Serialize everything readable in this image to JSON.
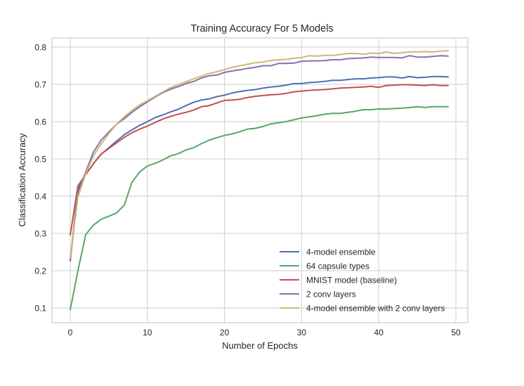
{
  "chart_data": {
    "type": "line",
    "title": "Training Accuracy For 5 Models",
    "xlabel": "Number of Epochs",
    "ylabel": "Classification Accuracy",
    "xlim": [
      -2.4,
      51.5
    ],
    "ylim": [
      0.06,
      0.825
    ],
    "xticks": [
      0,
      10,
      20,
      30,
      40,
      50
    ],
    "yticks": [
      0.1,
      0.2,
      0.3,
      0.4,
      0.5,
      0.6,
      0.7,
      0.8
    ],
    "xtick_labels": [
      "0",
      "10",
      "20",
      "30",
      "40",
      "50"
    ],
    "ytick_labels": [
      "0.1",
      "0.2",
      "0.3",
      "0.4",
      "0.5",
      "0.6",
      "0.7",
      "0.8"
    ],
    "grid": true,
    "legend_position": "lower right",
    "x": [
      0,
      1,
      2,
      3,
      4,
      5,
      6,
      7,
      8,
      9,
      10,
      11,
      12,
      13,
      14,
      15,
      16,
      17,
      18,
      19,
      20,
      21,
      22,
      23,
      24,
      25,
      26,
      27,
      28,
      29,
      30,
      31,
      32,
      33,
      34,
      35,
      36,
      37,
      38,
      39,
      40,
      41,
      42,
      43,
      44,
      45,
      46,
      47,
      48,
      49
    ],
    "series": [
      {
        "name": "4-model ensemble",
        "color": "#4c72b0",
        "values": [
          0.228,
          0.42,
          0.458,
          0.487,
          0.512,
          0.53,
          0.548,
          0.565,
          0.578,
          0.59,
          0.6,
          0.611,
          0.618,
          0.626,
          0.633,
          0.643,
          0.652,
          0.658,
          0.661,
          0.667,
          0.671,
          0.677,
          0.681,
          0.684,
          0.686,
          0.69,
          0.693,
          0.695,
          0.698,
          0.702,
          0.702,
          0.705,
          0.706,
          0.708,
          0.711,
          0.711,
          0.713,
          0.715,
          0.715,
          0.717,
          0.718,
          0.72,
          0.72,
          0.717,
          0.721,
          0.718,
          0.719,
          0.721,
          0.721,
          0.72
        ]
      },
      {
        "name": "64 capsule types",
        "color": "#55a868",
        "values": [
          0.095,
          0.2,
          0.297,
          0.322,
          0.338,
          0.346,
          0.355,
          0.376,
          0.437,
          0.465,
          0.481,
          0.488,
          0.497,
          0.508,
          0.514,
          0.524,
          0.53,
          0.541,
          0.55,
          0.557,
          0.563,
          0.567,
          0.573,
          0.58,
          0.582,
          0.587,
          0.594,
          0.597,
          0.6,
          0.605,
          0.61,
          0.613,
          0.616,
          0.62,
          0.622,
          0.622,
          0.625,
          0.628,
          0.632,
          0.632,
          0.634,
          0.634,
          0.635,
          0.636,
          0.638,
          0.64,
          0.638,
          0.64,
          0.64,
          0.64
        ]
      },
      {
        "name": "MNIST model (baseline)",
        "color": "#c44e52",
        "values": [
          0.296,
          0.428,
          0.458,
          0.487,
          0.513,
          0.528,
          0.543,
          0.558,
          0.57,
          0.58,
          0.588,
          0.598,
          0.607,
          0.614,
          0.62,
          0.625,
          0.631,
          0.64,
          0.643,
          0.65,
          0.657,
          0.658,
          0.66,
          0.665,
          0.668,
          0.67,
          0.672,
          0.673,
          0.676,
          0.68,
          0.682,
          0.684,
          0.685,
          0.686,
          0.688,
          0.69,
          0.691,
          0.692,
          0.693,
          0.695,
          0.692,
          0.697,
          0.698,
          0.699,
          0.699,
          0.698,
          0.697,
          0.699,
          0.697,
          0.697
        ]
      },
      {
        "name": "2 conv layers",
        "color": "#8172b2",
        "values": [
          0.226,
          0.41,
          0.465,
          0.518,
          0.55,
          0.572,
          0.593,
          0.608,
          0.625,
          0.64,
          0.653,
          0.666,
          0.678,
          0.687,
          0.694,
          0.702,
          0.708,
          0.717,
          0.723,
          0.725,
          0.732,
          0.736,
          0.739,
          0.743,
          0.746,
          0.75,
          0.75,
          0.756,
          0.756,
          0.757,
          0.762,
          0.763,
          0.763,
          0.764,
          0.766,
          0.766,
          0.769,
          0.77,
          0.771,
          0.773,
          0.772,
          0.772,
          0.772,
          0.771,
          0.777,
          0.773,
          0.773,
          0.775,
          0.777,
          0.776
        ]
      },
      {
        "name": "4-model ensemble with 2 conv layers",
        "color": "#ccb974",
        "values": [
          0.235,
          0.398,
          0.46,
          0.508,
          0.54,
          0.568,
          0.593,
          0.613,
          0.63,
          0.645,
          0.656,
          0.668,
          0.68,
          0.691,
          0.699,
          0.707,
          0.715,
          0.722,
          0.729,
          0.734,
          0.739,
          0.746,
          0.75,
          0.754,
          0.758,
          0.76,
          0.764,
          0.766,
          0.767,
          0.77,
          0.772,
          0.777,
          0.776,
          0.778,
          0.778,
          0.78,
          0.783,
          0.783,
          0.781,
          0.784,
          0.783,
          0.787,
          0.783,
          0.785,
          0.787,
          0.787,
          0.788,
          0.787,
          0.789,
          0.79
        ]
      }
    ]
  }
}
